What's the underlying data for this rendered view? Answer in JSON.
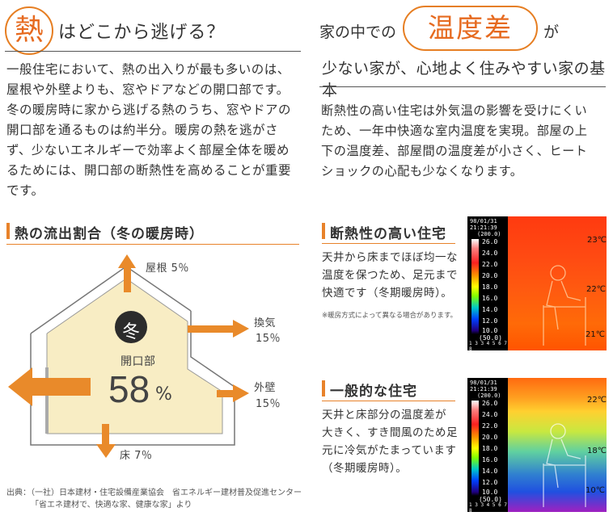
{
  "left": {
    "badge": "熱",
    "title": "はどこから逃げる？",
    "body": [
      "一般住宅において、熱の出入りが最も多いのは、",
      "屋根や外壁よりも、窓やドアなどの開口部です。",
      "冬の暖房時に家から逃げる熱のうち、窓やドアの",
      "開口部を通るものは約半分。暖房の熱を逃がさ",
      "ず、少ないエネルギーで効率よく部屋全体を暖め",
      "るためには、開口部の断熱性を高めることが重要",
      "です。"
    ],
    "section_title": "熱の流出割合（冬の暖房時）",
    "diagram": {
      "season": "冬",
      "opening_label": "開口部",
      "opening_value": "58",
      "opening_unit": "%",
      "roof": "屋根 5％",
      "vent_label": "換気",
      "vent_value": "15％",
      "wall_label": "外壁",
      "wall_value": "15％",
      "floor": "床 7％"
    },
    "source": [
      "出典：（一社）日本建材・住宅設備産業協会　省エネルギー建材普及促進センター",
      "「省エネ建材で、快適な家、健康な家」より"
    ]
  },
  "right": {
    "title_pre": "家の中での",
    "title_highlight": "温度差",
    "title_post": "が",
    "title_line2": "少ない家が、心地よく住みやすい家の基本",
    "body": [
      "断熱性の高い住宅は外気温の影響を受けにくい",
      "ため、一年中快適な室内温度を実現。部屋の上",
      "下の温度差、部屋間の温度差が小さく、ヒート",
      "ショックの心配も少なくなります。"
    ],
    "case1": {
      "title": "断熱性の高い住宅",
      "desc": [
        "天井から床までほぼ均一な",
        "温度を保つため、足元まで",
        "快適です（冬期暖房時）。"
      ],
      "note": "※暖房方式によって異なる場合があります。",
      "temps": [
        "23℃",
        "22℃",
        "21℃"
      ]
    },
    "case2": {
      "title": "一般的な住宅",
      "desc": [
        "天井と床部分の温度差が",
        "大きく、すき間風のため足",
        "元に冷気がたまっています",
        "（冬期暖房時）。"
      ],
      "temps": [
        "22℃",
        "18℃",
        "10℃"
      ]
    },
    "thermo_header": [
      "98/01/31",
      "21:21:39",
      "(200.0)"
    ],
    "thermo_scale": [
      "26.0",
      "24.0",
      "22.0",
      "20.0",
      "18.0",
      "16.0",
      "14.0",
      "12.0",
      "10.0",
      "(50.0)"
    ],
    "thermo_footer": "1 3 3 4 5 6 7 8"
  }
}
